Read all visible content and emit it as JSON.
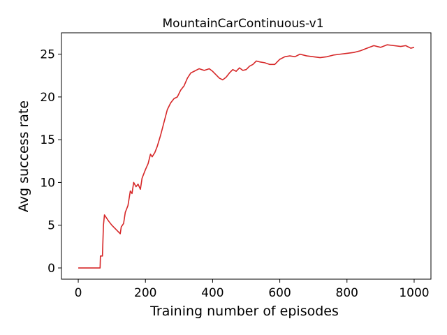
{
  "chart_data": {
    "type": "line",
    "title": "MountainCarContinuous-v1",
    "xlabel": "Training number of episodes",
    "ylabel": "Avg success rate",
    "xlim": [
      -50,
      1050
    ],
    "ylim": [
      -1.31,
      27.5
    ],
    "xticks": [
      0,
      200,
      400,
      600,
      800,
      1000
    ],
    "yticks": [
      0,
      5,
      10,
      15,
      20,
      25
    ],
    "series": [
      {
        "color": "#d62728",
        "x": [
          0,
          65,
          66,
          72,
          75,
          78,
          90,
          100,
          110,
          125,
          128,
          135,
          140,
          148,
          155,
          160,
          165,
          172,
          178,
          185,
          190,
          200,
          208,
          215,
          220,
          228,
          235,
          245,
          255,
          265,
          275,
          285,
          295,
          305,
          315,
          325,
          335,
          345,
          360,
          375,
          390,
          400,
          410,
          420,
          430,
          440,
          450,
          460,
          470,
          480,
          490,
          500,
          510,
          520,
          530,
          540,
          555,
          570,
          585,
          600,
          615,
          630,
          645,
          660,
          680,
          700,
          720,
          740,
          760,
          780,
          800,
          820,
          840,
          860,
          880,
          900,
          920,
          940,
          960,
          975,
          990,
          1000
        ],
        "values": [
          0,
          0,
          1.4,
          1.4,
          5,
          6.2,
          5.5,
          5.0,
          4.6,
          4.0,
          4.8,
          5.2,
          6.5,
          7.3,
          9.0,
          8.7,
          10.0,
          9.5,
          9.8,
          9.2,
          10.5,
          11.5,
          12.2,
          13.3,
          13.0,
          13.5,
          14.2,
          15.5,
          17.0,
          18.5,
          19.3,
          19.8,
          20.0,
          20.8,
          21.3,
          22.2,
          22.8,
          23.0,
          23.3,
          23.1,
          23.3,
          23.0,
          22.6,
          22.2,
          22.0,
          22.3,
          22.8,
          23.2,
          23.0,
          23.4,
          23.1,
          23.2,
          23.6,
          23.8,
          24.2,
          24.1,
          24.0,
          23.8,
          23.8,
          24.4,
          24.7,
          24.8,
          24.7,
          25.0,
          24.8,
          24.7,
          24.6,
          24.7,
          24.9,
          25.0,
          25.1,
          25.2,
          25.4,
          25.7,
          26.0,
          25.8,
          26.1,
          26.0,
          25.9,
          26.0,
          25.7,
          25.8
        ]
      }
    ]
  }
}
